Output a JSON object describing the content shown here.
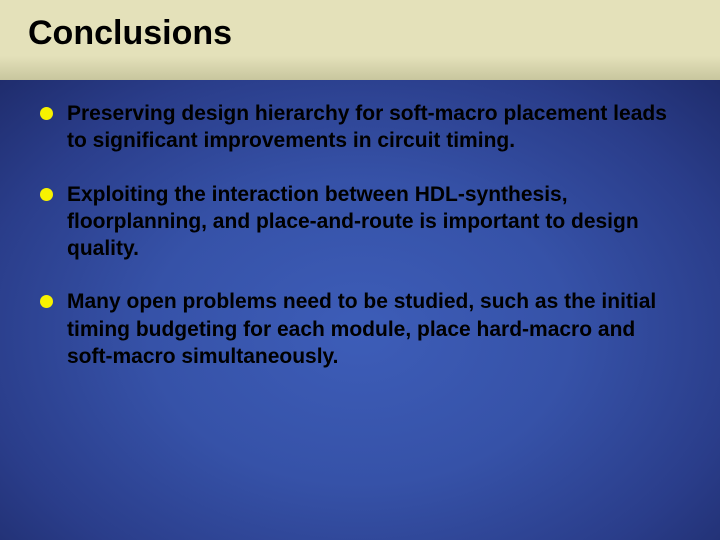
{
  "slide": {
    "title": "Conclusions",
    "title_color": "#000000",
    "title_fontsize": 34,
    "background_top": "#e4e1ba",
    "background_radial_center": "#3d5db8",
    "background_radial_edge": "#0d1438",
    "bullet_color": "#f7f200",
    "bullet_size": 13,
    "text_color": "#000000",
    "text_fontsize": 21,
    "text_weight": "bold",
    "bullets": [
      "Preserving design hierarchy for soft-macro placement leads to significant improvements in circuit timing.",
      "Exploiting the interaction between HDL-synthesis, floorplanning, and place-and-route is important to design quality.",
      "Many open problems need to be studied, such as  the initial timing budgeting for each module, place hard-macro and soft-macro simultaneously."
    ]
  }
}
